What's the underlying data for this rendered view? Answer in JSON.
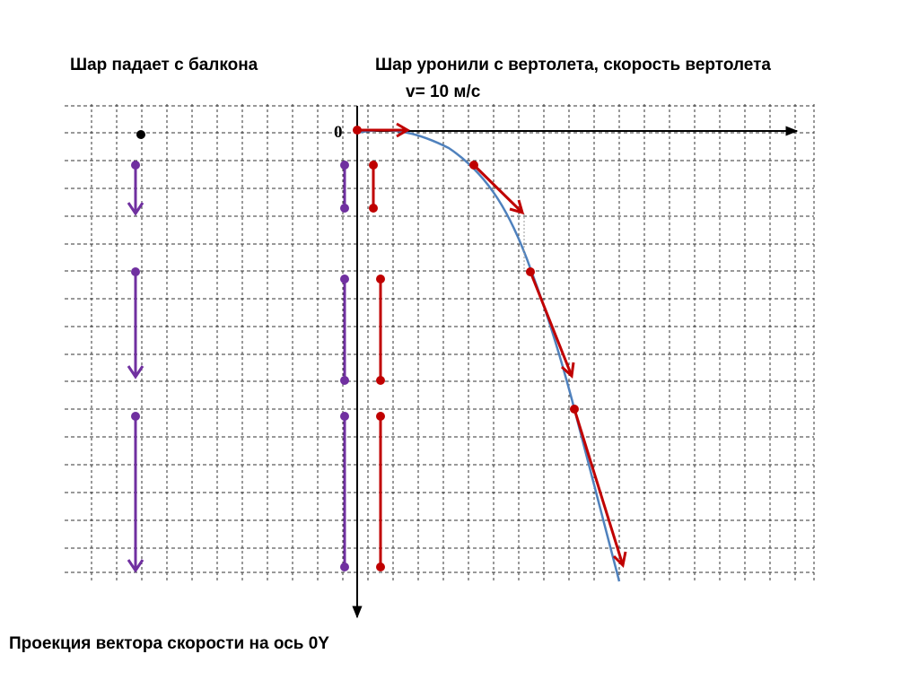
{
  "labels": {
    "balcony": "Шар падает с балкона",
    "helicopter": "Шар уронили с вертолета,  скорость вертолета",
    "speed": "v= 10 м/с",
    "projection": "Проекция вектора скорости на ось 0Y",
    "origin": "0"
  },
  "colors": {
    "grid": "#333333",
    "purple": "#7030a0",
    "red": "#c00000",
    "curve": "#4f81bd",
    "axis": "#000000"
  },
  "icons": {
    "axis_arrow": "arrowhead",
    "vector_start": "dot"
  }
}
